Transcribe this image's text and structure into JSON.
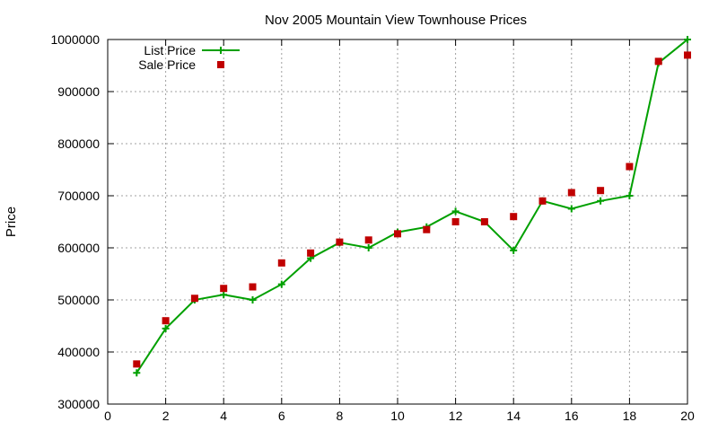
{
  "chart_data": {
    "type": "line",
    "title": "Nov 2005 Mountain View Townhouse Prices",
    "xlabel": "",
    "ylabel": "Price",
    "xlim": [
      0,
      20
    ],
    "ylim": [
      300000,
      1000000
    ],
    "xticks": [
      0,
      2,
      4,
      6,
      8,
      10,
      12,
      14,
      16,
      18,
      20
    ],
    "yticks": [
      300000,
      400000,
      500000,
      600000,
      700000,
      800000,
      900000,
      1000000
    ],
    "grid": true,
    "legend_position": "top-left",
    "series": [
      {
        "name": "List Price",
        "style": "line+cross",
        "color": "#00a000",
        "x": [
          1,
          2,
          3,
          4,
          5,
          6,
          7,
          8,
          9,
          10,
          11,
          12,
          13,
          14,
          15,
          16,
          17,
          18,
          19,
          20
        ],
        "y": [
          360000,
          445000,
          500000,
          510000,
          500000,
          530000,
          580000,
          610000,
          600000,
          630000,
          640000,
          670000,
          650000,
          595000,
          690000,
          675000,
          690000,
          700000,
          955000,
          1000000
        ]
      },
      {
        "name": "Sale Price",
        "style": "square",
        "color": "#c00000",
        "x": [
          1,
          2,
          3,
          4,
          5,
          6,
          7,
          8,
          9,
          10,
          11,
          12,
          13,
          14,
          15,
          16,
          17,
          18,
          19,
          20
        ],
        "y": [
          377000,
          460000,
          503000,
          522000,
          525000,
          571000,
          590000,
          611000,
          615000,
          627000,
          635000,
          650000,
          650000,
          660000,
          690000,
          706000,
          710000,
          756000,
          958000,
          970000
        ]
      }
    ]
  }
}
